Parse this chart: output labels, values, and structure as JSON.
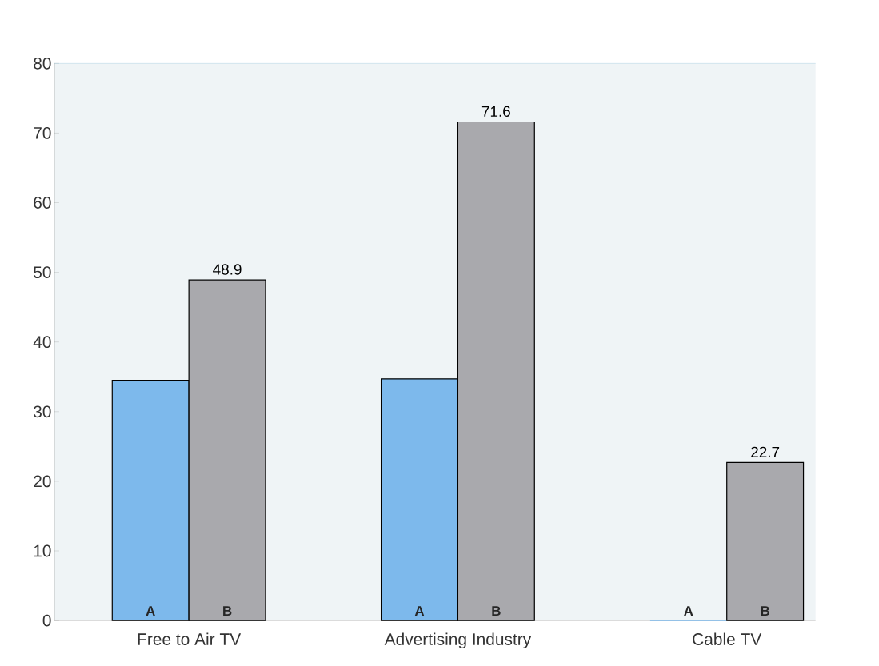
{
  "chart_data": {
    "type": "bar",
    "categories": [
      "Free to Air TV",
      "Advertising Industry",
      "Cable TV"
    ],
    "series": [
      {
        "name": "A",
        "color": "#7db9ec",
        "values": [
          34.5,
          34.7,
          0
        ]
      },
      {
        "name": "B",
        "color": "#a9a9ad",
        "values": [
          48.9,
          71.6,
          22.7
        ],
        "value_labels": [
          "48.9",
          "71.6",
          "22.7"
        ]
      }
    ],
    "ylim": [
      0,
      80
    ],
    "yticks": [
      0,
      10,
      20,
      30,
      40,
      50,
      60,
      70,
      80
    ],
    "grid": false,
    "legend": false
  }
}
